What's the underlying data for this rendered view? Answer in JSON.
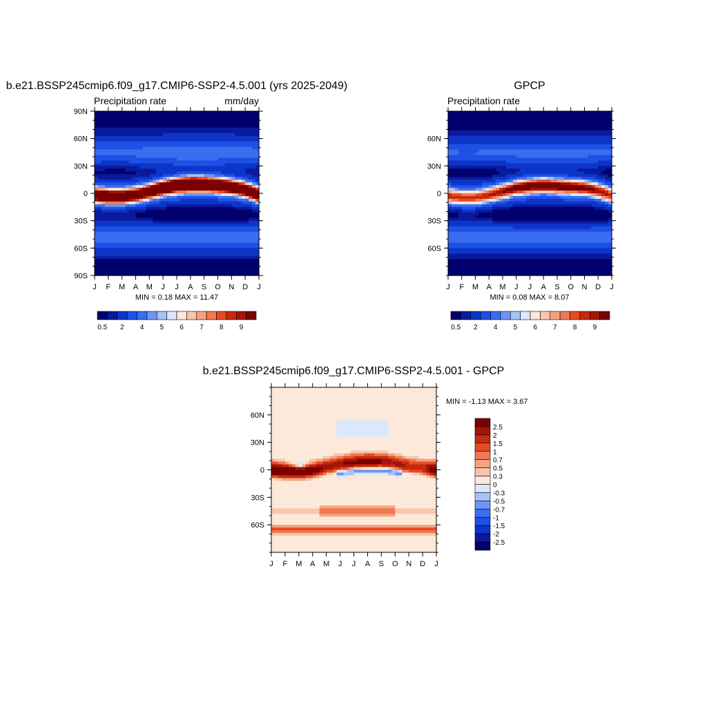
{
  "panels": [
    {
      "id": "model",
      "title": "b.e21.BSSP245cmip6.f09_g17.CMIP6-SSP2-4.5.001 (yrs 2025-2049)",
      "left_label": "Precipitation rate",
      "right_label": "mm/day",
      "stats": "MIN =   0.18 MAX =  11.47",
      "months": [
        "J",
        "F",
        "M",
        "A",
        "M",
        "J",
        "J",
        "A",
        "S",
        "O",
        "N",
        "D",
        "J"
      ],
      "lat_labels": [
        "90N",
        "60N",
        "30N",
        "0",
        "30S",
        "60S",
        "90S"
      ],
      "lat_values": [
        90,
        60,
        30,
        0,
        -30,
        -60,
        -90
      ],
      "colorbar_labels": [
        "0.5",
        "2",
        "4",
        "5",
        "6",
        "7",
        "8",
        "9"
      ]
    },
    {
      "id": "obs",
      "title": "GPCP",
      "left_label": "Precipitation rate",
      "right_label": "",
      "stats": "MIN =   0.08 MAX =   8.07",
      "months": [
        "J",
        "F",
        "M",
        "A",
        "M",
        "J",
        "J",
        "A",
        "S",
        "O",
        "N",
        "D",
        "J"
      ],
      "lat_labels": [
        "60N",
        "30N",
        "0",
        "30S",
        "60S"
      ],
      "lat_values": [
        60,
        30,
        0,
        -30,
        -60
      ],
      "colorbar_labels": [
        "0.5",
        "2",
        "4",
        "5",
        "6",
        "7",
        "8",
        "9"
      ]
    },
    {
      "id": "diff",
      "title": "b.e21.BSSP245cmip6.f09_g17.CMIP6-SSP2-4.5.001 - GPCP",
      "stats": "MIN =  -1.13 MAX =   3.67",
      "months": [
        "J",
        "F",
        "M",
        "A",
        "M",
        "J",
        "J",
        "A",
        "S",
        "O",
        "N",
        "D",
        "J"
      ],
      "lat_labels": [
        "60N",
        "30N",
        "0",
        "30S",
        "60S"
      ],
      "lat_values": [
        60,
        30,
        0,
        -30,
        -60
      ],
      "colorbar_labels": [
        "2.5",
        "2",
        "1.5",
        "1",
        "0.7",
        "0.5",
        "0.3",
        "0",
        "-0.3",
        "-0.5",
        "-0.7",
        "-1",
        "-1.5",
        "-2",
        "-2.5"
      ]
    }
  ],
  "chart_data": [
    {
      "type": "heatmap",
      "title": "b.e21.BSSP245cmip6.f09_g17.CMIP6-SSP2-4.5.001 (yrs 2025-2049)",
      "variable": "Precipitation rate",
      "units": "mm/day",
      "x": [
        "J",
        "F",
        "M",
        "A",
        "M",
        "J",
        "J",
        "A",
        "S",
        "O",
        "N",
        "D",
        "J"
      ],
      "y_range": [
        -90,
        90
      ],
      "min": 0.18,
      "max": 11.47,
      "itcz_lat_by_month": [
        -2,
        -4,
        -4,
        -2,
        2,
        6,
        9,
        10,
        10,
        9,
        7,
        4,
        -2
      ],
      "itcz_peak_mm_day": [
        9.0,
        9.5,
        9.3,
        8.5,
        8.8,
        10.0,
        11.0,
        11.4,
        11.0,
        10.5,
        9.5,
        8.8,
        9.0
      ],
      "levels": [
        0.5,
        1,
        2,
        3,
        4,
        4.5,
        5,
        5.5,
        6,
        6.5,
        7,
        7.5,
        8,
        8.5,
        9
      ],
      "colors": [
        "#00006e",
        "#0a1a9c",
        "#0d35c8",
        "#1e50e6",
        "#3a6ef0",
        "#6c95f3",
        "#a6c2f8",
        "#d9e8fd",
        "#fbe7d8",
        "#f8c6ad",
        "#f4a280",
        "#f07a52",
        "#e84b23",
        "#c72a0c",
        "#a3150a",
        "#7a0000"
      ]
    },
    {
      "type": "heatmap",
      "title": "GPCP",
      "variable": "Precipitation rate",
      "x": [
        "J",
        "F",
        "M",
        "A",
        "M",
        "J",
        "J",
        "A",
        "S",
        "O",
        "N",
        "D",
        "J"
      ],
      "y_range": [
        -90,
        90
      ],
      "min": 0.08,
      "max": 8.07,
      "itcz_lat_by_month": [
        -3,
        -5,
        -5,
        -2,
        2,
        6,
        8,
        9,
        8,
        7,
        6,
        3,
        -3
      ],
      "itcz_peak_mm_day": [
        5.8,
        5.8,
        5.8,
        6.0,
        6.5,
        7.2,
        7.8,
        8.0,
        7.8,
        7.4,
        7.0,
        6.5,
        5.8
      ],
      "levels": [
        0.5,
        1,
        2,
        3,
        4,
        4.5,
        5,
        5.5,
        6,
        6.5,
        7,
        7.5,
        8,
        8.5,
        9
      ],
      "colors": [
        "#00006e",
        "#0a1a9c",
        "#0d35c8",
        "#1e50e6",
        "#3a6ef0",
        "#6c95f3",
        "#a6c2f8",
        "#d9e8fd",
        "#fbe7d8",
        "#f8c6ad",
        "#f4a280",
        "#f07a52",
        "#e84b23",
        "#c72a0c",
        "#a3150a",
        "#7a0000"
      ]
    },
    {
      "type": "heatmap",
      "title": "b.e21.BSSP245cmip6.f09_g17.CMIP6-SSP2-4.5.001 - GPCP",
      "x": [
        "J",
        "F",
        "M",
        "A",
        "M",
        "J",
        "J",
        "A",
        "S",
        "O",
        "N",
        "D",
        "J"
      ],
      "y_range": [
        -90,
        90
      ],
      "min": -1.13,
      "max": 3.67,
      "itcz_bias_lat_by_month": [
        0,
        -2,
        -2,
        -1,
        3,
        6,
        8,
        9,
        9,
        7,
        4,
        2,
        0
      ],
      "itcz_bias_peak": [
        3.6,
        3.7,
        3.6,
        3.0,
        2.2,
        2.4,
        2.6,
        2.8,
        2.5,
        2.2,
        1.8,
        1.5,
        3.6
      ],
      "levels": [
        -2.5,
        -2,
        -1.5,
        -1,
        -0.7,
        -0.5,
        -0.3,
        0,
        0.3,
        0.5,
        0.7,
        1,
        1.5,
        2,
        2.5
      ],
      "colors": [
        "#00006e",
        "#0a1a9c",
        "#0d35c8",
        "#1e50e6",
        "#3a6ef0",
        "#6c95f3",
        "#a6c2f8",
        "#d9e8fd",
        "#fde9d9",
        "#f8c6ad",
        "#f4a280",
        "#f07a52",
        "#e84b23",
        "#c72a0c",
        "#a3150a",
        "#7a0000"
      ]
    }
  ]
}
